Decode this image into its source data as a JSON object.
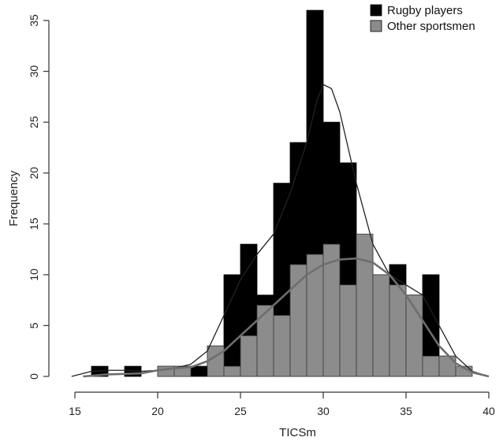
{
  "chart_data": {
    "type": "bar",
    "title": "",
    "xlabel": "TICSm",
    "ylabel": "Frequency",
    "xlim": [
      15,
      40
    ],
    "ylim": [
      0,
      35
    ],
    "bin_width": 1,
    "bin_starts": [
      16,
      17,
      18,
      19,
      20,
      21,
      22,
      23,
      24,
      25,
      26,
      27,
      28,
      29,
      30,
      31,
      32,
      33,
      34,
      35,
      36,
      37,
      38
    ],
    "x_ticks": [
      15,
      20,
      25,
      30,
      35,
      40
    ],
    "y_ticks": [
      0,
      5,
      10,
      15,
      20,
      25,
      30,
      35
    ],
    "series": [
      {
        "name": "Rugby players",
        "color": "#000000",
        "values": [
          1,
          0,
          1,
          0,
          1,
          1,
          1,
          3,
          10,
          13,
          8,
          19,
          23,
          36,
          25,
          21,
          13,
          10,
          11,
          8,
          10,
          2,
          0
        ]
      },
      {
        "name": "Other sportsmen",
        "color": "#8c8c8c",
        "values": [
          0,
          0,
          0,
          0,
          1,
          1,
          0,
          3,
          1,
          4,
          7,
          6,
          11,
          12,
          13,
          9,
          14,
          10,
          9,
          8,
          2,
          2,
          1
        ]
      }
    ],
    "density_curves": [
      {
        "series": "Rugby players",
        "color": "#222222",
        "points": [
          [
            14.8,
            0
          ],
          [
            16,
            0.5
          ],
          [
            17,
            0.6
          ],
          [
            18,
            0.6
          ],
          [
            19,
            0.5
          ],
          [
            20,
            0.6
          ],
          [
            21,
            0.8
          ],
          [
            22,
            1.2
          ],
          [
            23,
            2.5
          ],
          [
            24,
            6
          ],
          [
            25,
            9.5
          ],
          [
            26,
            12
          ],
          [
            27,
            14
          ],
          [
            28,
            18
          ],
          [
            29,
            23
          ],
          [
            29.6,
            27
          ],
          [
            30,
            28.7
          ],
          [
            30.5,
            28.3
          ],
          [
            31,
            26
          ],
          [
            32,
            19
          ],
          [
            33,
            13
          ],
          [
            34,
            10
          ],
          [
            35,
            9
          ],
          [
            36,
            8
          ],
          [
            37,
            5
          ],
          [
            38,
            2
          ],
          [
            39,
            0.5
          ],
          [
            40,
            0
          ]
        ]
      },
      {
        "series": "Other sportsmen",
        "color": "#6e6e6e",
        "points": [
          [
            15.5,
            0
          ],
          [
            17,
            0.2
          ],
          [
            19,
            0.3
          ],
          [
            20,
            0.6
          ],
          [
            21,
            0.8
          ],
          [
            22,
            0.9
          ],
          [
            23,
            1.5
          ],
          [
            24,
            2.5
          ],
          [
            25,
            4
          ],
          [
            26,
            5.5
          ],
          [
            27,
            7
          ],
          [
            28,
            8.5
          ],
          [
            29,
            10
          ],
          [
            30,
            11
          ],
          [
            31,
            11.5
          ],
          [
            32,
            11.6
          ],
          [
            33,
            11.2
          ],
          [
            34,
            10
          ],
          [
            35,
            8
          ],
          [
            36,
            5.5
          ],
          [
            37,
            3
          ],
          [
            38,
            1.3
          ],
          [
            39,
            0.4
          ],
          [
            40,
            0
          ]
        ]
      }
    ],
    "legend": {
      "position": "top-right",
      "items": [
        "Rugby players",
        "Other sportsmen"
      ]
    },
    "grid": false
  }
}
